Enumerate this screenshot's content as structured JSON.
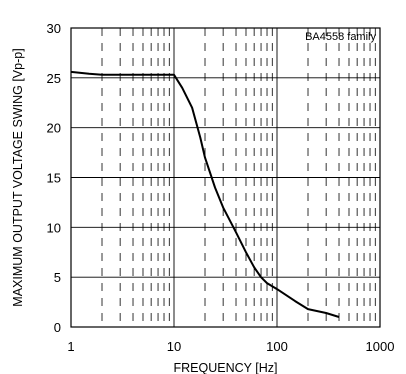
{
  "chart_data": {
    "type": "line",
    "title": "",
    "annotation": "BA4558  family",
    "xlabel": "FREQUENCY [Hz]",
    "ylabel": "MAXIMUM OUTPUT VOLTAGE SWING [Vp-p]",
    "xscale": "log",
    "xlim": [
      1,
      1000
    ],
    "ylim": [
      0,
      30
    ],
    "x_ticks": [
      1,
      10,
      100,
      1000
    ],
    "x_tick_labels": [
      "1",
      "10",
      "100",
      "1000"
    ],
    "y_ticks": [
      0,
      5,
      10,
      15,
      20,
      25,
      30
    ],
    "y_tick_labels": [
      "0",
      "5",
      "10",
      "15",
      "20",
      "25",
      "30"
    ],
    "grid": true,
    "series": [
      {
        "x": [
          1,
          1.5,
          2,
          3,
          5,
          7,
          10,
          12,
          15,
          18,
          20,
          25,
          30,
          40,
          50,
          60,
          70,
          80,
          100,
          150,
          200,
          300,
          400
        ],
        "y": [
          25.6,
          25.4,
          25.3,
          25.3,
          25.3,
          25.3,
          25.3,
          24.0,
          22.0,
          19.0,
          17.0,
          14.0,
          12.0,
          9.5,
          7.5,
          6.0,
          5.0,
          4.4,
          3.8,
          2.6,
          1.8,
          1.4,
          1.0
        ]
      }
    ]
  }
}
